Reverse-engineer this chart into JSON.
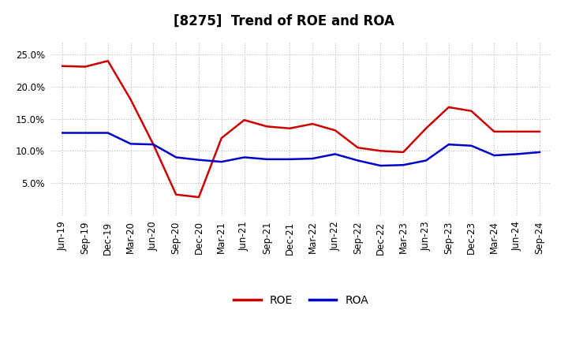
{
  "title": "[8275]  Trend of ROE and ROA",
  "labels": [
    "Jun-19",
    "Sep-19",
    "Dec-19",
    "Mar-20",
    "Jun-20",
    "Sep-20",
    "Dec-20",
    "Mar-21",
    "Jun-21",
    "Sep-21",
    "Dec-21",
    "Mar-22",
    "Jun-22",
    "Sep-22",
    "Dec-22",
    "Mar-23",
    "Jun-23",
    "Sep-23",
    "Dec-23",
    "Mar-24",
    "Jun-24",
    "Sep-24"
  ],
  "ROE": [
    23.2,
    23.1,
    24.0,
    18.0,
    11.0,
    3.2,
    2.8,
    12.0,
    14.8,
    13.8,
    13.5,
    14.2,
    13.2,
    10.5,
    10.0,
    9.8,
    13.5,
    16.8,
    16.2,
    13.0,
    13.0,
    13.0
  ],
  "ROA": [
    12.8,
    12.8,
    12.8,
    11.1,
    11.0,
    9.0,
    8.6,
    8.3,
    9.0,
    8.7,
    8.7,
    8.8,
    9.5,
    8.5,
    7.7,
    7.8,
    8.5,
    11.0,
    10.8,
    9.3,
    9.5,
    9.8
  ],
  "roe_color": "#cc0000",
  "roa_color": "#0000cc",
  "background_color": "#ffffff",
  "grid_color": "#bbbbbb",
  "ylim": [
    0,
    27
  ],
  "yticks": [
    5.0,
    10.0,
    15.0,
    20.0,
    25.0
  ],
  "title_fontsize": 12,
  "legend_fontsize": 10,
  "tick_fontsize": 8.5
}
